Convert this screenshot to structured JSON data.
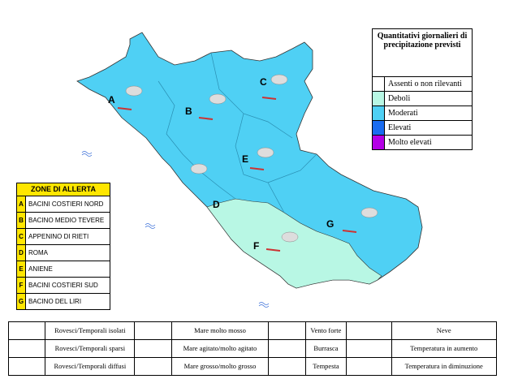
{
  "legend": {
    "title": "Quantitativi giornalieri di precipitazione previsti",
    "items": [
      {
        "label": "Assenti o non rilevanti",
        "color": "#ffffff"
      },
      {
        "label": "Deboli",
        "color": "#b8f7e4"
      },
      {
        "label": "Moderati",
        "color": "#4fd0f4"
      },
      {
        "label": "Elevati",
        "color": "#1a6cf0"
      },
      {
        "label": "Molto elevati",
        "color": "#b400e6"
      }
    ]
  },
  "zones": {
    "title": "ZONE DI ALLERTA",
    "rows": [
      {
        "code": "A",
        "name": "BACINI COSTIERI NORD"
      },
      {
        "code": "B",
        "name": "BACINO MEDIO TEVERE"
      },
      {
        "code": "C",
        "name": "APPENINO DI RIETI"
      },
      {
        "code": "D",
        "name": "ROMA"
      },
      {
        "code": "E",
        "name": "ANIENE"
      },
      {
        "code": "F",
        "name": "BACINI COSTIERI SUD"
      },
      {
        "code": "G",
        "name": "BACINO DEL LIRI"
      }
    ]
  },
  "map_labels": [
    "A",
    "B",
    "C",
    "D",
    "E",
    "F",
    "G"
  ],
  "symbols_legend": {
    "rows": [
      [
        "Rovesci/Temporali isolati",
        "Mare molto mosso",
        "Vento forte",
        "Neve"
      ],
      [
        "Rovesci/Temporali sparsi",
        "Mare agitato/molto agitato",
        "Burrasca",
        "Temperatura in aumento"
      ],
      [
        "Rovesci/Temporali diffusi",
        "Mare grosso/molto grosso",
        "Tempesta",
        "Temperatura in diminuzione"
      ]
    ]
  }
}
